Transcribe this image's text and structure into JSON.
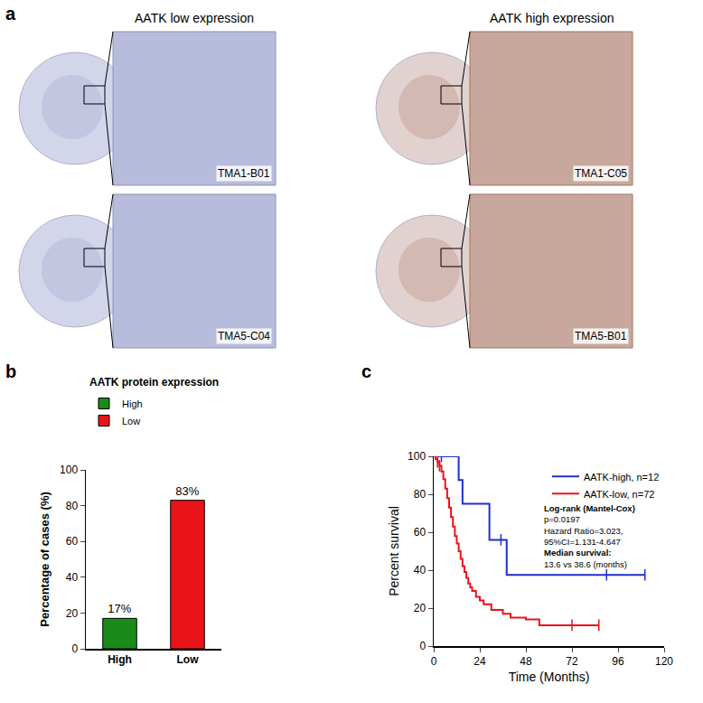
{
  "panel_a": {
    "label": "a",
    "groups": [
      {
        "title": "AATK low expression",
        "samples": [
          "TMA1-B01",
          "TMA5-C04"
        ]
      },
      {
        "title": "AATK high expression",
        "samples": [
          "TMA1-C05",
          "TMA5-B01"
        ]
      }
    ]
  },
  "chart_data": [
    {
      "panel": "b",
      "type": "bar",
      "title": "AATK protein expression",
      "categories": [
        "High",
        "Low"
      ],
      "values": [
        17,
        83
      ],
      "value_labels": [
        "17%",
        "83%"
      ],
      "colors": [
        "#1a8a1a",
        "#e8141a"
      ],
      "ylabel": "Percentage of cases (%)",
      "ylim": [
        0,
        100
      ],
      "yticks": [
        0,
        20,
        40,
        60,
        80,
        100
      ],
      "data_labels": true,
      "legend": "top left"
    },
    {
      "panel": "c",
      "type": "line",
      "line_style": "step",
      "xlabel": "Time (Months)",
      "ylabel": "Percent survival",
      "xlim": [
        0,
        120
      ],
      "xticks": [
        0,
        24,
        48,
        72,
        96,
        120
      ],
      "ylim": [
        0,
        100
      ],
      "yticks": [
        0,
        20,
        40,
        60,
        80,
        100
      ],
      "legend": "top right",
      "annotations": [
        "Log-rank (Mantel-Cox)",
        "p=0.0197",
        "Hazard Ratio=3.023,",
        "95%CI=1.131-4.647",
        "Median survival:",
        "13.6 vs 38.6 (months)"
      ],
      "series": [
        {
          "name": "AATK-high, n=12",
          "color": "#1f2fd0",
          "x": [
            0,
            13,
            15,
            29,
            38,
            110
          ],
          "values": [
            100,
            87.5,
            75,
            56,
            37.5,
            37.5
          ],
          "censored": {
            "x": [
              4,
              35,
              90,
              110
            ],
            "y": [
              100,
              56,
              37.5,
              37.5
            ]
          }
        },
        {
          "name": "AATK-low, n=72",
          "color": "#e8141a",
          "x": [
            0,
            1,
            2,
            3,
            4,
            5,
            6,
            7,
            8,
            9,
            10,
            11,
            12,
            13,
            14,
            15,
            16,
            17,
            18,
            19,
            20,
            22,
            24,
            26,
            30,
            33,
            36,
            40,
            48,
            55,
            86
          ],
          "values": [
            100,
            98.6,
            97,
            95,
            92,
            88,
            83,
            78,
            73,
            68,
            63,
            58,
            54,
            50,
            46,
            42,
            39,
            36,
            33,
            31,
            29,
            26,
            24,
            22,
            19,
            19,
            17,
            15,
            14,
            11,
            11
          ],
          "censored": {
            "x": [
              2,
              3,
              72,
              86
            ],
            "y": [
              97,
              95,
              11,
              11
            ]
          }
        }
      ]
    }
  ]
}
